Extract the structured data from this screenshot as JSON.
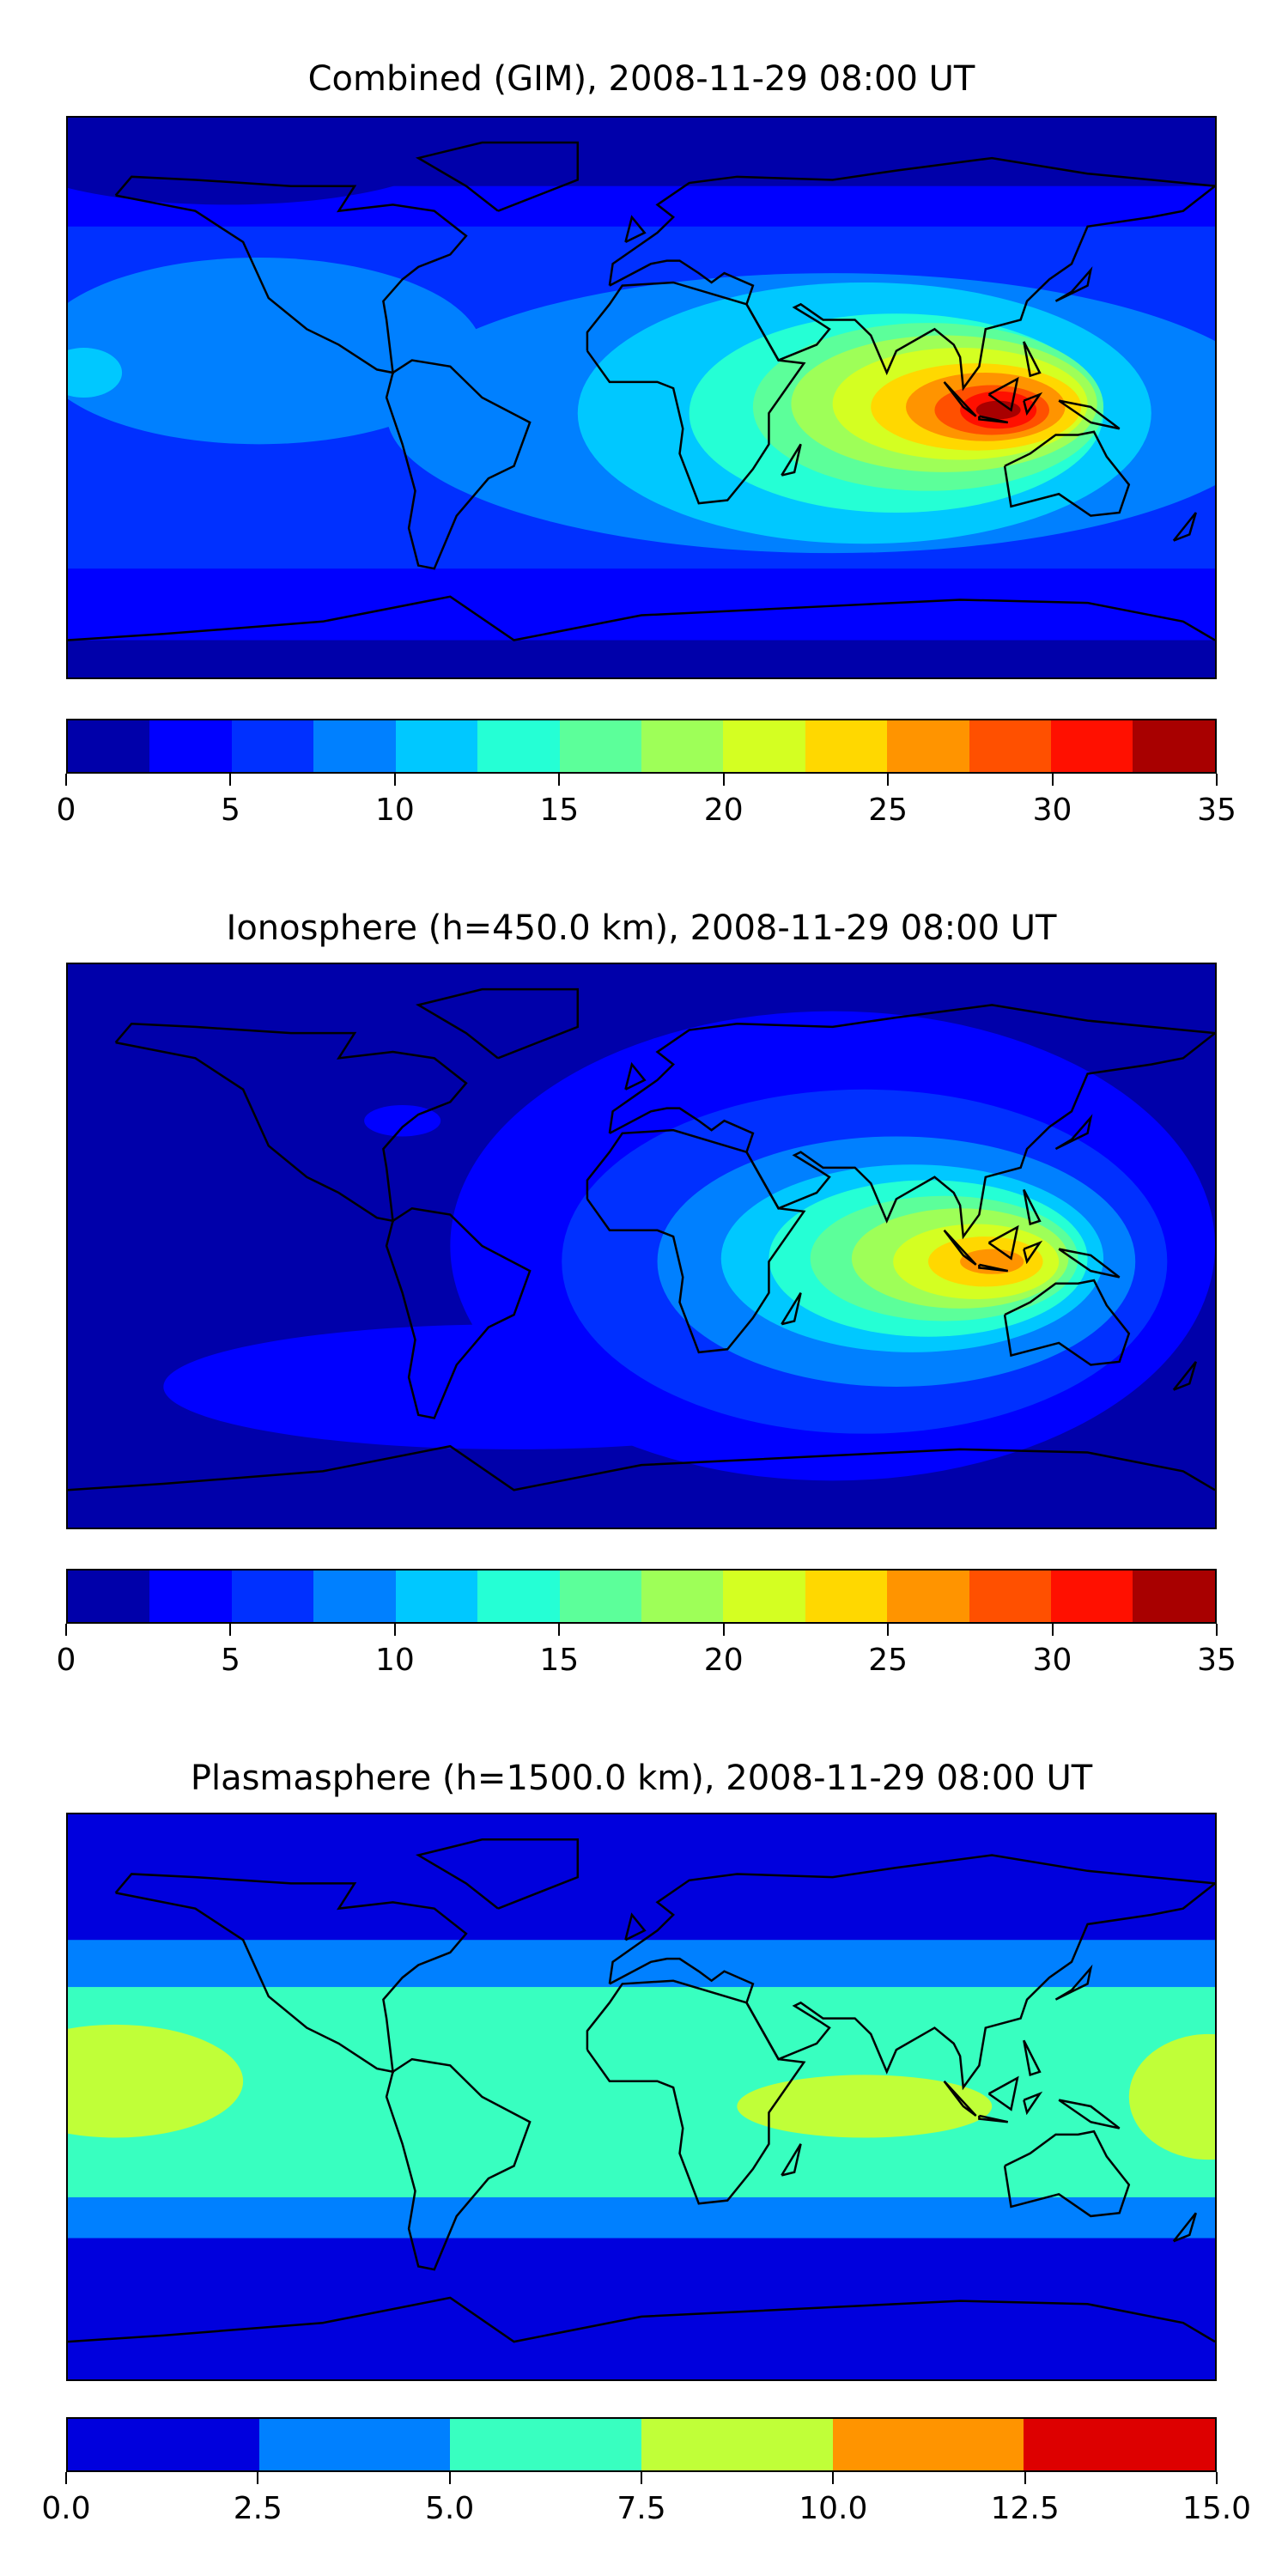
{
  "chart_data": [
    {
      "type": "heatmap",
      "title": "Combined (GIM), 2008-11-29 08:00 UT",
      "levels": [
        0,
        2.5,
        5,
        7.5,
        10,
        12.5,
        15,
        17.5,
        20,
        22.5,
        25,
        27.5,
        30,
        32.5,
        35
      ],
      "colors": [
        "#0000aa",
        "#0000ff",
        "#0030ff",
        "#0080ff",
        "#00c8ff",
        "#25ffd5",
        "#5cff9a",
        "#9eff58",
        "#d4ff22",
        "#ffd800",
        "#ff9400",
        "#ff5000",
        "#ff1000",
        "#a80000"
      ],
      "ticks": [
        "0",
        "5",
        "10",
        "15",
        "20",
        "25",
        "30",
        "35"
      ],
      "tick_values": [
        0,
        5,
        10,
        15,
        20,
        25,
        30,
        35
      ],
      "range": [
        0,
        35
      ],
      "peak": {
        "lon": 112,
        "lat": -4,
        "level_index": 13
      }
    },
    {
      "type": "heatmap",
      "title": "Ionosphere  (h=450.0 km), 2008-11-29 08:00 UT",
      "levels": [
        0,
        2.5,
        5,
        7.5,
        10,
        12.5,
        15,
        17.5,
        20,
        22.5,
        25,
        27.5,
        30,
        32.5,
        35
      ],
      "colors": [
        "#0000aa",
        "#0000ff",
        "#0030ff",
        "#0080ff",
        "#00c8ff",
        "#25ffd5",
        "#5cff9a",
        "#9eff58",
        "#d4ff22",
        "#ffd800",
        "#ff9400",
        "#ff5000",
        "#ff1000",
        "#a80000"
      ],
      "ticks": [
        "0",
        "5",
        "10",
        "15",
        "20",
        "25",
        "30",
        "35"
      ],
      "tick_values": [
        0,
        5,
        10,
        15,
        20,
        25,
        30,
        35
      ],
      "range": [
        0,
        35
      ],
      "peak": {
        "lon": 110,
        "lat": -5,
        "level_index": 10
      }
    },
    {
      "type": "heatmap",
      "title": "Plasmasphere (h=1500.0 km), 2008-11-29 08:00 UT",
      "levels": [
        0,
        2.5,
        5,
        7.5,
        10,
        12.5,
        15
      ],
      "colors": [
        "#0000dd",
        "#0080ff",
        "#38ffc0",
        "#c0ff38",
        "#ff9400",
        "#dd0000"
      ],
      "ticks": [
        "0.0",
        "2.5",
        "5.0",
        "7.5",
        "10.0",
        "12.5",
        "15.0"
      ],
      "tick_values": [
        0,
        2.5,
        5,
        7.5,
        10,
        12.5,
        15
      ],
      "range": [
        0,
        15
      ],
      "peak": {
        "lon": -165,
        "lat": 5,
        "level_index": 3
      }
    }
  ]
}
